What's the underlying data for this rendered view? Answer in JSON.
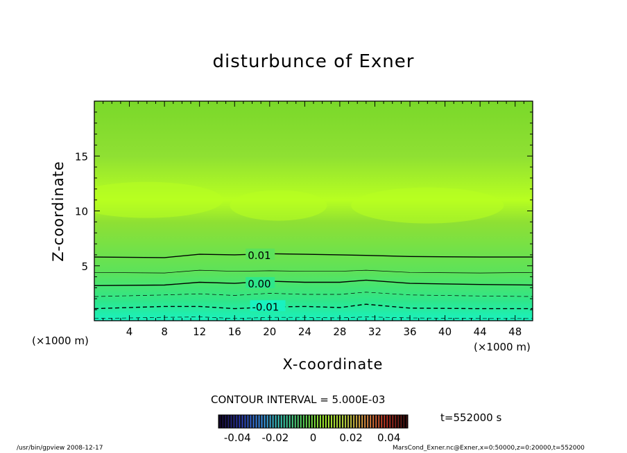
{
  "chart_data": {
    "type": "heatmap",
    "title": "disturbunce of Exner",
    "xlabel": "X-coordinate",
    "ylabel": "Z-coordinate",
    "x_unit": "(×1000 m)",
    "xlim": [
      0,
      50
    ],
    "ylim": [
      0,
      20
    ],
    "x_ticks": [
      4,
      8,
      12,
      16,
      20,
      24,
      28,
      32,
      36,
      40,
      44,
      48
    ],
    "y_ticks": [
      5,
      10,
      15
    ],
    "contour_interval_text": "CONTOUR INTERVAL = 5.000E-03",
    "contour_labels": [
      {
        "text": "0.01",
        "value": 0.01,
        "x": 17.5,
        "z": 6.0
      },
      {
        "text": "0.00",
        "value": 0.0,
        "x": 17.5,
        "z": 3.4
      },
      {
        "text": "-0.01",
        "value": -0.01,
        "x": 18.0,
        "z": 1.3
      }
    ],
    "contours": [
      {
        "value": 0.01,
        "style": "solid",
        "width": 1.4,
        "x": [
          0,
          8,
          12,
          16,
          20,
          24,
          28,
          31,
          36,
          44,
          50
        ],
        "z": [
          5.8,
          5.75,
          6.05,
          6.0,
          6.1,
          6.05,
          6.0,
          5.95,
          5.85,
          5.8,
          5.8
        ]
      },
      {
        "value": 0.005,
        "style": "solid",
        "width": 0.7,
        "x": [
          0,
          8,
          12,
          16,
          20,
          24,
          28,
          31,
          36,
          44,
          50
        ],
        "z": [
          4.4,
          4.35,
          4.6,
          4.5,
          4.55,
          4.5,
          4.5,
          4.6,
          4.4,
          4.35,
          4.4
        ]
      },
      {
        "value": 0.0,
        "style": "solid",
        "width": 1.4,
        "x": [
          0,
          8,
          12,
          16,
          20,
          24,
          28,
          31,
          36,
          44,
          50
        ],
        "z": [
          3.2,
          3.25,
          3.5,
          3.4,
          3.6,
          3.5,
          3.5,
          3.7,
          3.4,
          3.3,
          3.25
        ]
      },
      {
        "value": -0.005,
        "style": "dashed",
        "width": 0.7,
        "x": [
          0,
          8,
          12,
          16,
          20,
          24,
          28,
          31,
          36,
          44,
          50
        ],
        "z": [
          2.2,
          2.35,
          2.45,
          2.3,
          2.5,
          2.4,
          2.4,
          2.6,
          2.35,
          2.25,
          2.2
        ]
      },
      {
        "value": -0.01,
        "style": "dashed",
        "width": 1.4,
        "x": [
          0,
          8,
          12,
          16,
          20,
          24,
          28,
          31,
          36,
          44,
          50
        ],
        "z": [
          1.1,
          1.3,
          1.3,
          1.1,
          1.25,
          1.3,
          1.2,
          1.5,
          1.15,
          1.1,
          1.1
        ]
      },
      {
        "value": -0.015,
        "style": "dashed",
        "width": 0.7,
        "x": [
          0,
          8,
          12,
          16,
          20,
          24,
          28,
          31,
          36,
          44,
          50
        ],
        "z": [
          0.2,
          0.3,
          0.35,
          0.2,
          0.3,
          0.3,
          0.25,
          0.35,
          0.25,
          0.2,
          0.2
        ]
      }
    ],
    "colorbar": {
      "min": -0.05,
      "max": 0.05,
      "ticks": [
        -0.04,
        -0.02,
        0,
        0.02,
        0.04
      ],
      "tick_labels": [
        "-0.04",
        "-0.02",
        "0",
        "0.02",
        "0.04"
      ],
      "colors": [
        "#1a0a3a",
        "#3040c0",
        "#40a0ff",
        "#40e0c0",
        "#60e060",
        "#b0ff30",
        "#c0e040",
        "#e09040",
        "#c03020",
        "#401010"
      ]
    },
    "field_colors": {
      "surface": "#19f2c0",
      "low": "#2ee68a",
      "mid": "#5ce25a",
      "upper": "#8fe033",
      "top": "#7ad82a",
      "bright": "#b8ff20"
    },
    "time_text": "t=552000 s"
  },
  "footer": {
    "left": "/usr/bin/gpview   2008-12-17",
    "right": "MarsCond_Exner.nc@Exner,x=0:50000,z=0:20000,t=552000"
  }
}
